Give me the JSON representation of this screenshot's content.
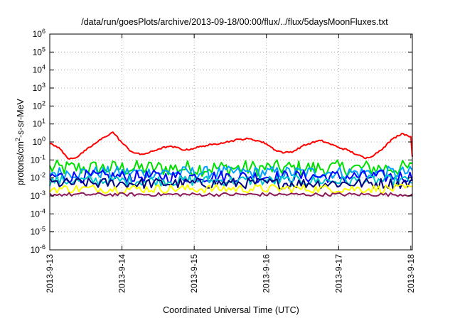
{
  "chart_data": {
    "type": "line",
    "title": "/data/run/goesPlots/archive/2013-09-18/00:00/flux/../flux/5daysMoonFluxes.txt",
    "xlabel": "Coordinated Universal Time (UTC)",
    "ylabel": "protons/cm2-s-sr-MeV",
    "ylabel_parts": {
      "pre": "protons/cm",
      "sup": "2",
      "post": "-s-sr-MeV"
    },
    "yscale": "log",
    "ylim_exp": [
      -6,
      6
    ],
    "xlim": [
      "2013-09-13",
      "2013-09-18T00:30"
    ],
    "x_tick_labels": [
      "2013-9-13",
      "2013-9-14",
      "2013-9-15",
      "2013-9-16",
      "2013-9-17",
      "2013-9-18"
    ],
    "y_tick_labels": [
      {
        "base": "10",
        "exp": "-6"
      },
      {
        "base": "10",
        "exp": "-5"
      },
      {
        "base": "10",
        "exp": "-4"
      },
      {
        "base": "10",
        "exp": "-3"
      },
      {
        "base": "10",
        "exp": "-2"
      },
      {
        "base": "10",
        "exp": "-1"
      },
      {
        "base": "10",
        "exp": "0"
      },
      {
        "base": "10",
        "exp": "1"
      },
      {
        "base": "10",
        "exp": "2"
      },
      {
        "base": "10",
        "exp": "3"
      },
      {
        "base": "10",
        "exp": "4"
      },
      {
        "base": "10",
        "exp": "5"
      },
      {
        "base": "10",
        "exp": "6"
      }
    ],
    "grid": true,
    "legend": "none",
    "series": [
      {
        "color": "#ff0000",
        "x": [
          "2013-09-13T00:00",
          "2013-09-13T03:00",
          "2013-09-13T06:00",
          "2013-09-13T09:00",
          "2013-09-13T12:00",
          "2013-09-13T15:00",
          "2013-09-13T18:00",
          "2013-09-13T21:00",
          "2013-09-14T00:00",
          "2013-09-14T03:00",
          "2013-09-14T06:00",
          "2013-09-14T09:00",
          "2013-09-14T12:00",
          "2013-09-14T15:00",
          "2013-09-14T18:00",
          "2013-09-14T21:00",
          "2013-09-15T00:00",
          "2013-09-15T03:00",
          "2013-09-15T06:00",
          "2013-09-15T09:00",
          "2013-09-15T12:00",
          "2013-09-15T15:00",
          "2013-09-15T18:00",
          "2013-09-15T21:00",
          "2013-09-16T00:00",
          "2013-09-16T03:00",
          "2013-09-16T06:00",
          "2013-09-16T09:00",
          "2013-09-16T12:00",
          "2013-09-16T15:00",
          "2013-09-16T18:00",
          "2013-09-16T21:00",
          "2013-09-17T00:00",
          "2013-09-17T03:00",
          "2013-09-17T06:00",
          "2013-09-17T09:00",
          "2013-09-17T12:00",
          "2013-09-17T15:00",
          "2013-09-17T18:00",
          "2013-09-17T21:00",
          "2013-09-18T00:00",
          "2013-09-18T00:30"
        ],
        "values": [
          0.8,
          0.5,
          0.12,
          0.14,
          0.35,
          0.8,
          1.8,
          3.5,
          0.9,
          0.3,
          0.2,
          0.25,
          0.4,
          0.55,
          0.5,
          0.35,
          0.45,
          0.6,
          0.7,
          0.9,
          1.1,
          1.4,
          1.5,
          1.2,
          0.8,
          0.35,
          0.25,
          0.3,
          0.6,
          0.9,
          1.2,
          0.8,
          0.5,
          0.35,
          0.2,
          0.12,
          0.2,
          0.5,
          1.5,
          3.0,
          2.0,
          0.15
        ]
      },
      {
        "color": "#00e000",
        "x": [
          "2013-09-13",
          "2013-09-18T00:30"
        ],
        "values": [
          0.035,
          0.035
        ],
        "spread": 0.45
      },
      {
        "color": "#00a0ff",
        "x": [
          "2013-09-13",
          "2013-09-18T00:30"
        ],
        "values": [
          0.02,
          0.02
        ],
        "spread": 0.35
      },
      {
        "color": "#0000ff",
        "x": [
          "2013-09-13",
          "2013-09-18T00:30"
        ],
        "values": [
          0.012,
          0.012
        ],
        "spread": 0.35
      },
      {
        "color": "#00c8c8",
        "x": [
          "2013-09-13",
          "2013-09-18T00:30"
        ],
        "values": [
          0.007,
          0.007
        ],
        "spread": 0.3
      },
      {
        "color": "#000080",
        "x": [
          "2013-09-13",
          "2013-09-18T00:30"
        ],
        "values": [
          0.005,
          0.005
        ],
        "spread": 0.3
      },
      {
        "color": "#ffff00",
        "x": [
          "2013-09-13",
          "2013-09-18T00:30"
        ],
        "values": [
          0.0025,
          0.0025
        ],
        "spread": 0.25
      },
      {
        "color": "#8b1a5a",
        "x": [
          "2013-09-13",
          "2013-09-18T00:30"
        ],
        "values": [
          0.0012,
          0.0012
        ],
        "spread": 0.1
      }
    ]
  }
}
